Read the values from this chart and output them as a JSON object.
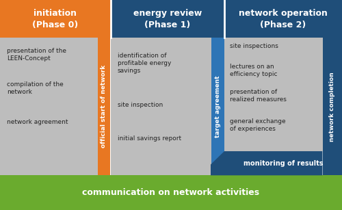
{
  "colors": {
    "orange": "#E87722",
    "dark_blue": "#1F4E79",
    "medium_blue": "#2E75B6",
    "gray": "#BDBDBD",
    "green": "#6AAB2E",
    "white": "#FFFFFF",
    "black": "#222222"
  },
  "headers": [
    {
      "text": "initiation\n(Phase 0)"
    },
    {
      "text": "energy review\n(Phase 1)"
    },
    {
      "text": "network operation\n(Phase 2)"
    }
  ],
  "phase0_items": [
    "presentation of the\nLEEN-Concept",
    "compilation of the\nnetwork",
    "network agreement"
  ],
  "phase1_items": [
    "identification of\nprofitable energy\nsavings",
    "site inspection",
    "initial savings report"
  ],
  "phase2_items": [
    "site inspections",
    "lectures on an\nefficiency topic",
    "presentation of\nrealized measures",
    "general exchange\nof experiences"
  ],
  "vertical_labels": [
    "official start of network",
    "target agreement",
    "network completion"
  ],
  "monitoring_text": "monitoring of results",
  "bottom_text": "communication on network activities"
}
